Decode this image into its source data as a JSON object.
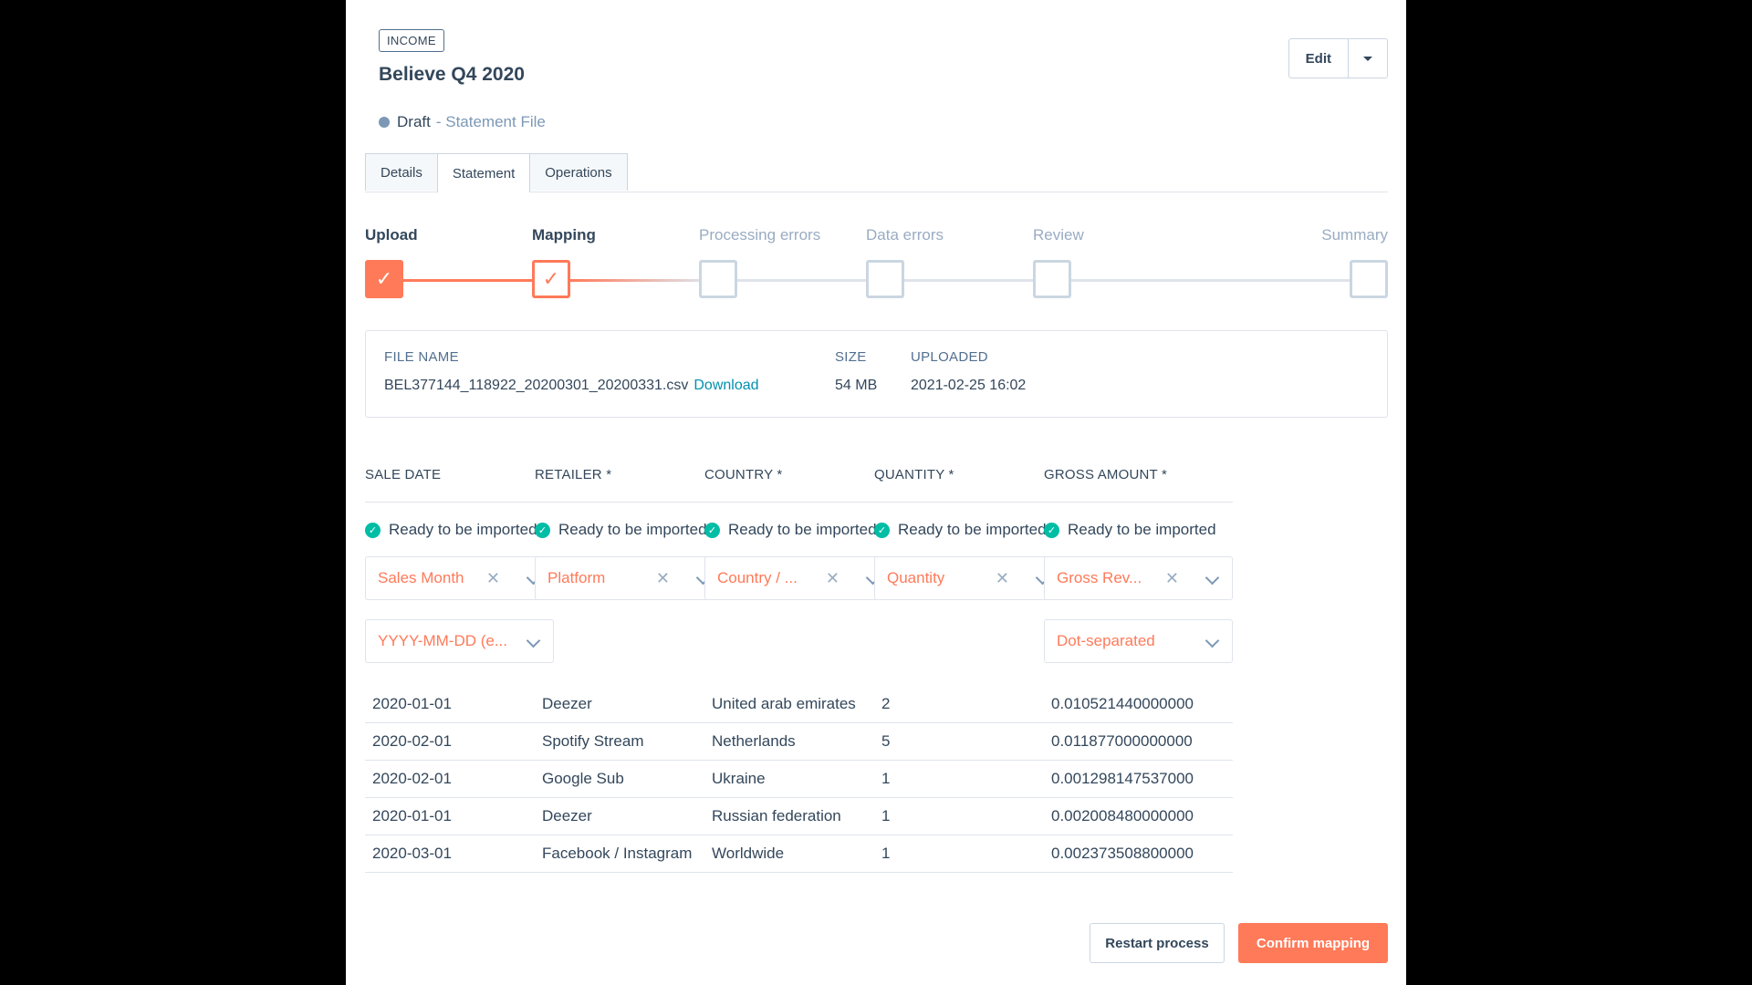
{
  "header": {
    "tag": "INCOME",
    "title": "Believe Q4 2020",
    "status": "Draft",
    "status_sub": "- Statement File",
    "edit_label": "Edit"
  },
  "tabs": [
    {
      "label": "Details",
      "active": false
    },
    {
      "label": "Statement",
      "active": true
    },
    {
      "label": "Operations",
      "active": false
    }
  ],
  "steps": [
    {
      "label": "Upload",
      "state": "done"
    },
    {
      "label": "Mapping",
      "state": "current"
    },
    {
      "label": "Processing errors",
      "state": "todo"
    },
    {
      "label": "Data errors",
      "state": "todo"
    },
    {
      "label": "Review",
      "state": "todo"
    },
    {
      "label": "Summary",
      "state": "todo"
    }
  ],
  "file": {
    "name_header": "FILE NAME",
    "name": "BEL377144_118922_20200301_20200331.csv",
    "download": "Download",
    "size_header": "SIZE",
    "size": "54 MB",
    "uploaded_header": "UPLOADED",
    "uploaded": "2021-02-25 16:02"
  },
  "columns": [
    {
      "header": "SALE DATE",
      "status": "Ready to be imported",
      "mapping": "Sales Month",
      "format": "YYYY-MM-DD (e..."
    },
    {
      "header": "RETAILER *",
      "status": "Ready to be imported",
      "mapping": "Platform"
    },
    {
      "header": "COUNTRY *",
      "status": "Ready to be imported",
      "mapping": "Country / ..."
    },
    {
      "header": "QUANTITY *",
      "status": "Ready to be imported",
      "mapping": "Quantity"
    },
    {
      "header": "GROSS AMOUNT *",
      "status": "Ready to be imported",
      "mapping": "Gross Rev...",
      "format": "Dot-separated"
    }
  ],
  "rows": [
    [
      "2020-01-01",
      "Deezer",
      "United arab emirates",
      "2",
      "0.010521440000000"
    ],
    [
      "2020-02-01",
      "Spotify Stream",
      "Netherlands",
      "5",
      "0.011877000000000"
    ],
    [
      "2020-02-01",
      "Google Sub",
      "Ukraine",
      "1",
      "0.001298147537000"
    ],
    [
      "2020-01-01",
      "Deezer",
      "Russian federation",
      "1",
      "0.002008480000000"
    ],
    [
      "2020-03-01",
      "Facebook / Instagram",
      "Worldwide",
      "1",
      "0.002373508800000"
    ]
  ],
  "actions": {
    "restart": "Restart process",
    "confirm": "Confirm mapping"
  },
  "colors": {
    "accent": "#ff7a59",
    "success": "#00bda5",
    "link": "#0091ae"
  },
  "icons": {
    "check": "check-icon",
    "clear": "clear-x-icon",
    "chevron": "chevron-down-icon",
    "caret": "caret-down-icon"
  }
}
